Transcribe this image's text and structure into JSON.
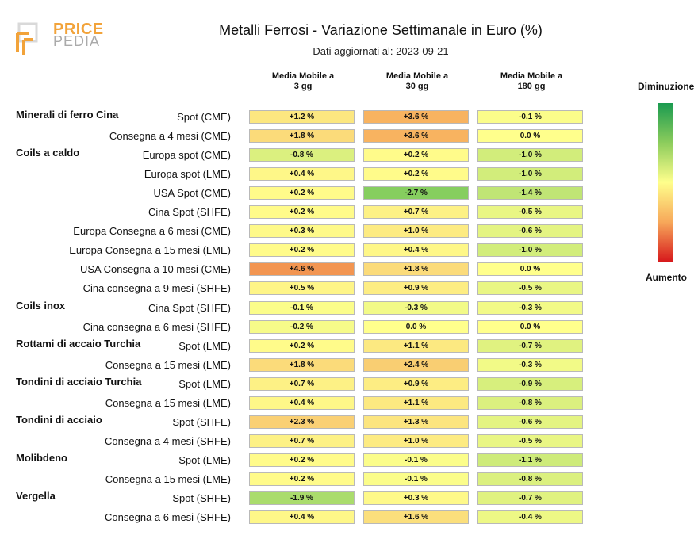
{
  "logo": {
    "text_top": "PRICE",
    "text_bottom": "PEDIA"
  },
  "title": "Metalli Ferrosi - Variazione Settimanale in Euro (%)",
  "subtitle": "Dati aggiornati al: 2023-09-21",
  "columns": [
    {
      "line1": "Media Mobile a",
      "line2": "3 gg"
    },
    {
      "line1": "Media Mobile a",
      "line2": "30 gg"
    },
    {
      "line1": "Media Mobile a",
      "line2": "180 gg"
    }
  ],
  "legend": {
    "top": "Diminuzione",
    "bottom": "Aumento"
  },
  "colors": {
    "decrease": "#1a9a50",
    "neutral": "#ffff8c",
    "increase": "#d7191c"
  },
  "chart_data": {
    "type": "table",
    "rows": [
      {
        "group": "Minerali di ferro Cina",
        "label": "Spot (CME)",
        "values": [
          "+1.2 %",
          "+3.6 %",
          "-0.1 %"
        ]
      },
      {
        "group": "",
        "label": "Consegna a 4 mesi (CME)",
        "values": [
          "+1.8 %",
          "+3.6 %",
          "0.0 %"
        ]
      },
      {
        "group": "Coils a caldo",
        "label": "Europa spot (CME)",
        "values": [
          "-0.8 %",
          "+0.2 %",
          "-1.0 %"
        ]
      },
      {
        "group": "",
        "label": "Europa spot (LME)",
        "values": [
          "+0.4 %",
          "+0.2 %",
          "-1.0 %"
        ]
      },
      {
        "group": "",
        "label": "USA Spot (CME)",
        "values": [
          "+0.2 %",
          "-2.7 %",
          "-1.4 %"
        ]
      },
      {
        "group": "",
        "label": "Cina Spot (SHFE)",
        "values": [
          "+0.2 %",
          "+0.7 %",
          "-0.5 %"
        ]
      },
      {
        "group": "",
        "label": "Europa Consegna a 6 mesi (CME)",
        "values": [
          "+0.3 %",
          "+1.0 %",
          "-0.6 %"
        ]
      },
      {
        "group": "",
        "label": "Europa Consegna a 15 mesi (LME)",
        "values": [
          "+0.2 %",
          "+0.4 %",
          "-1.0 %"
        ]
      },
      {
        "group": "",
        "label": "USA Consegna a 10 mesi (CME)",
        "values": [
          "+4.6 %",
          "+1.8 %",
          "0.0 %"
        ]
      },
      {
        "group": "",
        "label": "Cina consegna a 9 mesi (SHFE)",
        "values": [
          "+0.5 %",
          "+0.9 %",
          "-0.5 %"
        ]
      },
      {
        "group": "Coils inox",
        "label": "Cina Spot (SHFE)",
        "values": [
          "-0.1 %",
          "-0.3 %",
          "-0.3 %"
        ]
      },
      {
        "group": "",
        "label": "Cina consegna a 6 mesi (SHFE)",
        "values": [
          "-0.2 %",
          "0.0 %",
          "0.0 %"
        ]
      },
      {
        "group": "Rottami di accaio Turchia",
        "label": "Spot (LME)",
        "values": [
          "+0.2 %",
          "+1.1 %",
          "-0.7 %"
        ]
      },
      {
        "group": "",
        "label": "Consegna a 15 mesi (LME)",
        "values": [
          "+1.8 %",
          "+2.4 %",
          "-0.3 %"
        ]
      },
      {
        "group": "Tondini di acciaio Turchia",
        "label": "Spot (LME)",
        "values": [
          "+0.7 %",
          "+0.9 %",
          "-0.9 %"
        ]
      },
      {
        "group": "",
        "label": "Consegna a 15 mesi (LME)",
        "values": [
          "+0.4 %",
          "+1.1 %",
          "-0.8 %"
        ]
      },
      {
        "group": "Tondini di acciaio",
        "label": "Spot (SHFE)",
        "values": [
          "+2.3 %",
          "+1.3 %",
          "-0.6 %"
        ]
      },
      {
        "group": "",
        "label": "Consegna a 4 mesi (SHFE)",
        "values": [
          "+0.7 %",
          "+1.0 %",
          "-0.5 %"
        ]
      },
      {
        "group": "Molibdeno",
        "label": "Spot (LME)",
        "values": [
          "+0.2 %",
          "-0.1 %",
          "-1.1 %"
        ]
      },
      {
        "group": "",
        "label": "Consegna a 15 mesi (LME)",
        "values": [
          "+0.2 %",
          "-0.1 %",
          "-0.8 %"
        ]
      },
      {
        "group": "Vergella",
        "label": "Spot (SHFE)",
        "values": [
          "-1.9 %",
          "+0.3 %",
          "-0.7 %"
        ]
      },
      {
        "group": "",
        "label": "Consegna a 6 mesi (SHFE)",
        "values": [
          "+0.4 %",
          "+1.6 %",
          "-0.4 %"
        ]
      }
    ]
  }
}
